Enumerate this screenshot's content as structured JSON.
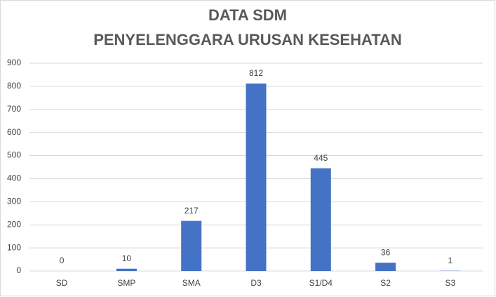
{
  "chart_data": {
    "type": "bar",
    "title": "DATA SDM",
    "subtitle": "PENYELENGGARA URUSAN KESEHATAN",
    "categories": [
      "SD",
      "SMP",
      "SMA",
      "D3",
      "S1/D4",
      "S2",
      "S3"
    ],
    "values": [
      0,
      10,
      217,
      812,
      445,
      36,
      1
    ],
    "color": "#4472c4",
    "ylim": [
      0,
      900
    ],
    "yticks": [
      0,
      100,
      200,
      300,
      400,
      500,
      600,
      700,
      800,
      900
    ],
    "grid": true
  }
}
